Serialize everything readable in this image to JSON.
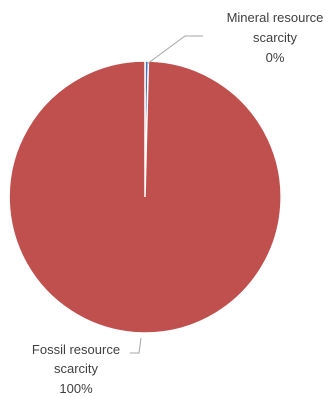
{
  "chart_data": {
    "type": "pie",
    "slices": [
      {
        "label_lines": [
          "Mineral resource",
          "scarcity"
        ],
        "percent_label": "0%",
        "value": 0.4,
        "color": "#4472C4"
      },
      {
        "label_lines": [
          "Fossil resource",
          "scarcity"
        ],
        "percent_label": "100%",
        "value": 99.6,
        "color": "#C0504D"
      }
    ],
    "slice_border_color": "#ffffff",
    "leader_line_color": "#A6A6A6",
    "label_color": "#404040"
  }
}
